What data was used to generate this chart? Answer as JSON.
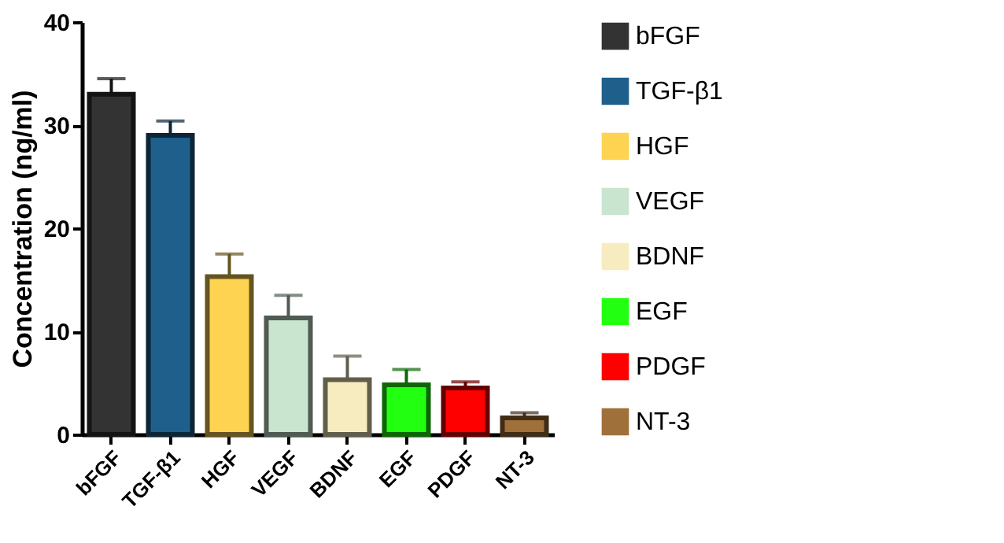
{
  "chart_data": {
    "type": "bar",
    "ylabel": "Concentration (ng/ml)",
    "categories": [
      "bFGF",
      "TGF-β1",
      "HGF",
      "VEGF",
      "BDNF",
      "EGF",
      "PDGF",
      "NT-3"
    ],
    "series": [
      {
        "name": "bFGF",
        "color": "#333333",
        "values": [
          33,
          null,
          null,
          null,
          null,
          null,
          null,
          null
        ],
        "errors": [
          1.5,
          null,
          null,
          null,
          null,
          null,
          null,
          null
        ]
      },
      {
        "name": "TGF-β1",
        "color": "#1f5f8b",
        "values": [
          null,
          29,
          null,
          null,
          null,
          null,
          null,
          null
        ],
        "errors": [
          null,
          1.4,
          null,
          null,
          null,
          null,
          null,
          null
        ]
      },
      {
        "name": "HGF",
        "color": "#fdd351",
        "values": [
          null,
          null,
          15.3,
          null,
          null,
          null,
          null,
          null
        ],
        "errors": [
          null,
          null,
          2.2,
          null,
          null,
          null,
          null,
          null
        ]
      },
      {
        "name": "VEGF",
        "color": "#c9e4cf",
        "values": [
          null,
          null,
          null,
          11.3,
          null,
          null,
          null,
          null
        ],
        "errors": [
          null,
          null,
          null,
          2.2,
          null,
          null,
          null,
          null
        ]
      },
      {
        "name": "BDNF",
        "color": "#f7ecc0",
        "values": [
          null,
          null,
          null,
          null,
          5.3,
          null,
          null,
          null
        ],
        "errors": [
          null,
          null,
          null,
          null,
          2.3,
          null,
          null,
          null
        ]
      },
      {
        "name": "EGF",
        "color": "#22ff11",
        "values": [
          null,
          null,
          null,
          null,
          null,
          4.8,
          null,
          null
        ],
        "errors": [
          null,
          null,
          null,
          null,
          null,
          1.5,
          null,
          null
        ]
      },
      {
        "name": "PDGF",
        "color": "#ff0000",
        "values": [
          null,
          null,
          null,
          null,
          null,
          null,
          4.5,
          null
        ],
        "errors": [
          null,
          null,
          null,
          null,
          null,
          null,
          0.6,
          null
        ]
      },
      {
        "name": "NT-3",
        "color": "#a0703a",
        "values": [
          null,
          null,
          null,
          null,
          null,
          null,
          null,
          1.6
        ],
        "errors": [
          null,
          null,
          null,
          null,
          null,
          null,
          null,
          0.5
        ]
      }
    ],
    "ylim": [
      0,
      40
    ],
    "yticks": [
      0,
      10,
      20,
      30,
      40
    ],
    "grid": false,
    "legend": "right"
  }
}
